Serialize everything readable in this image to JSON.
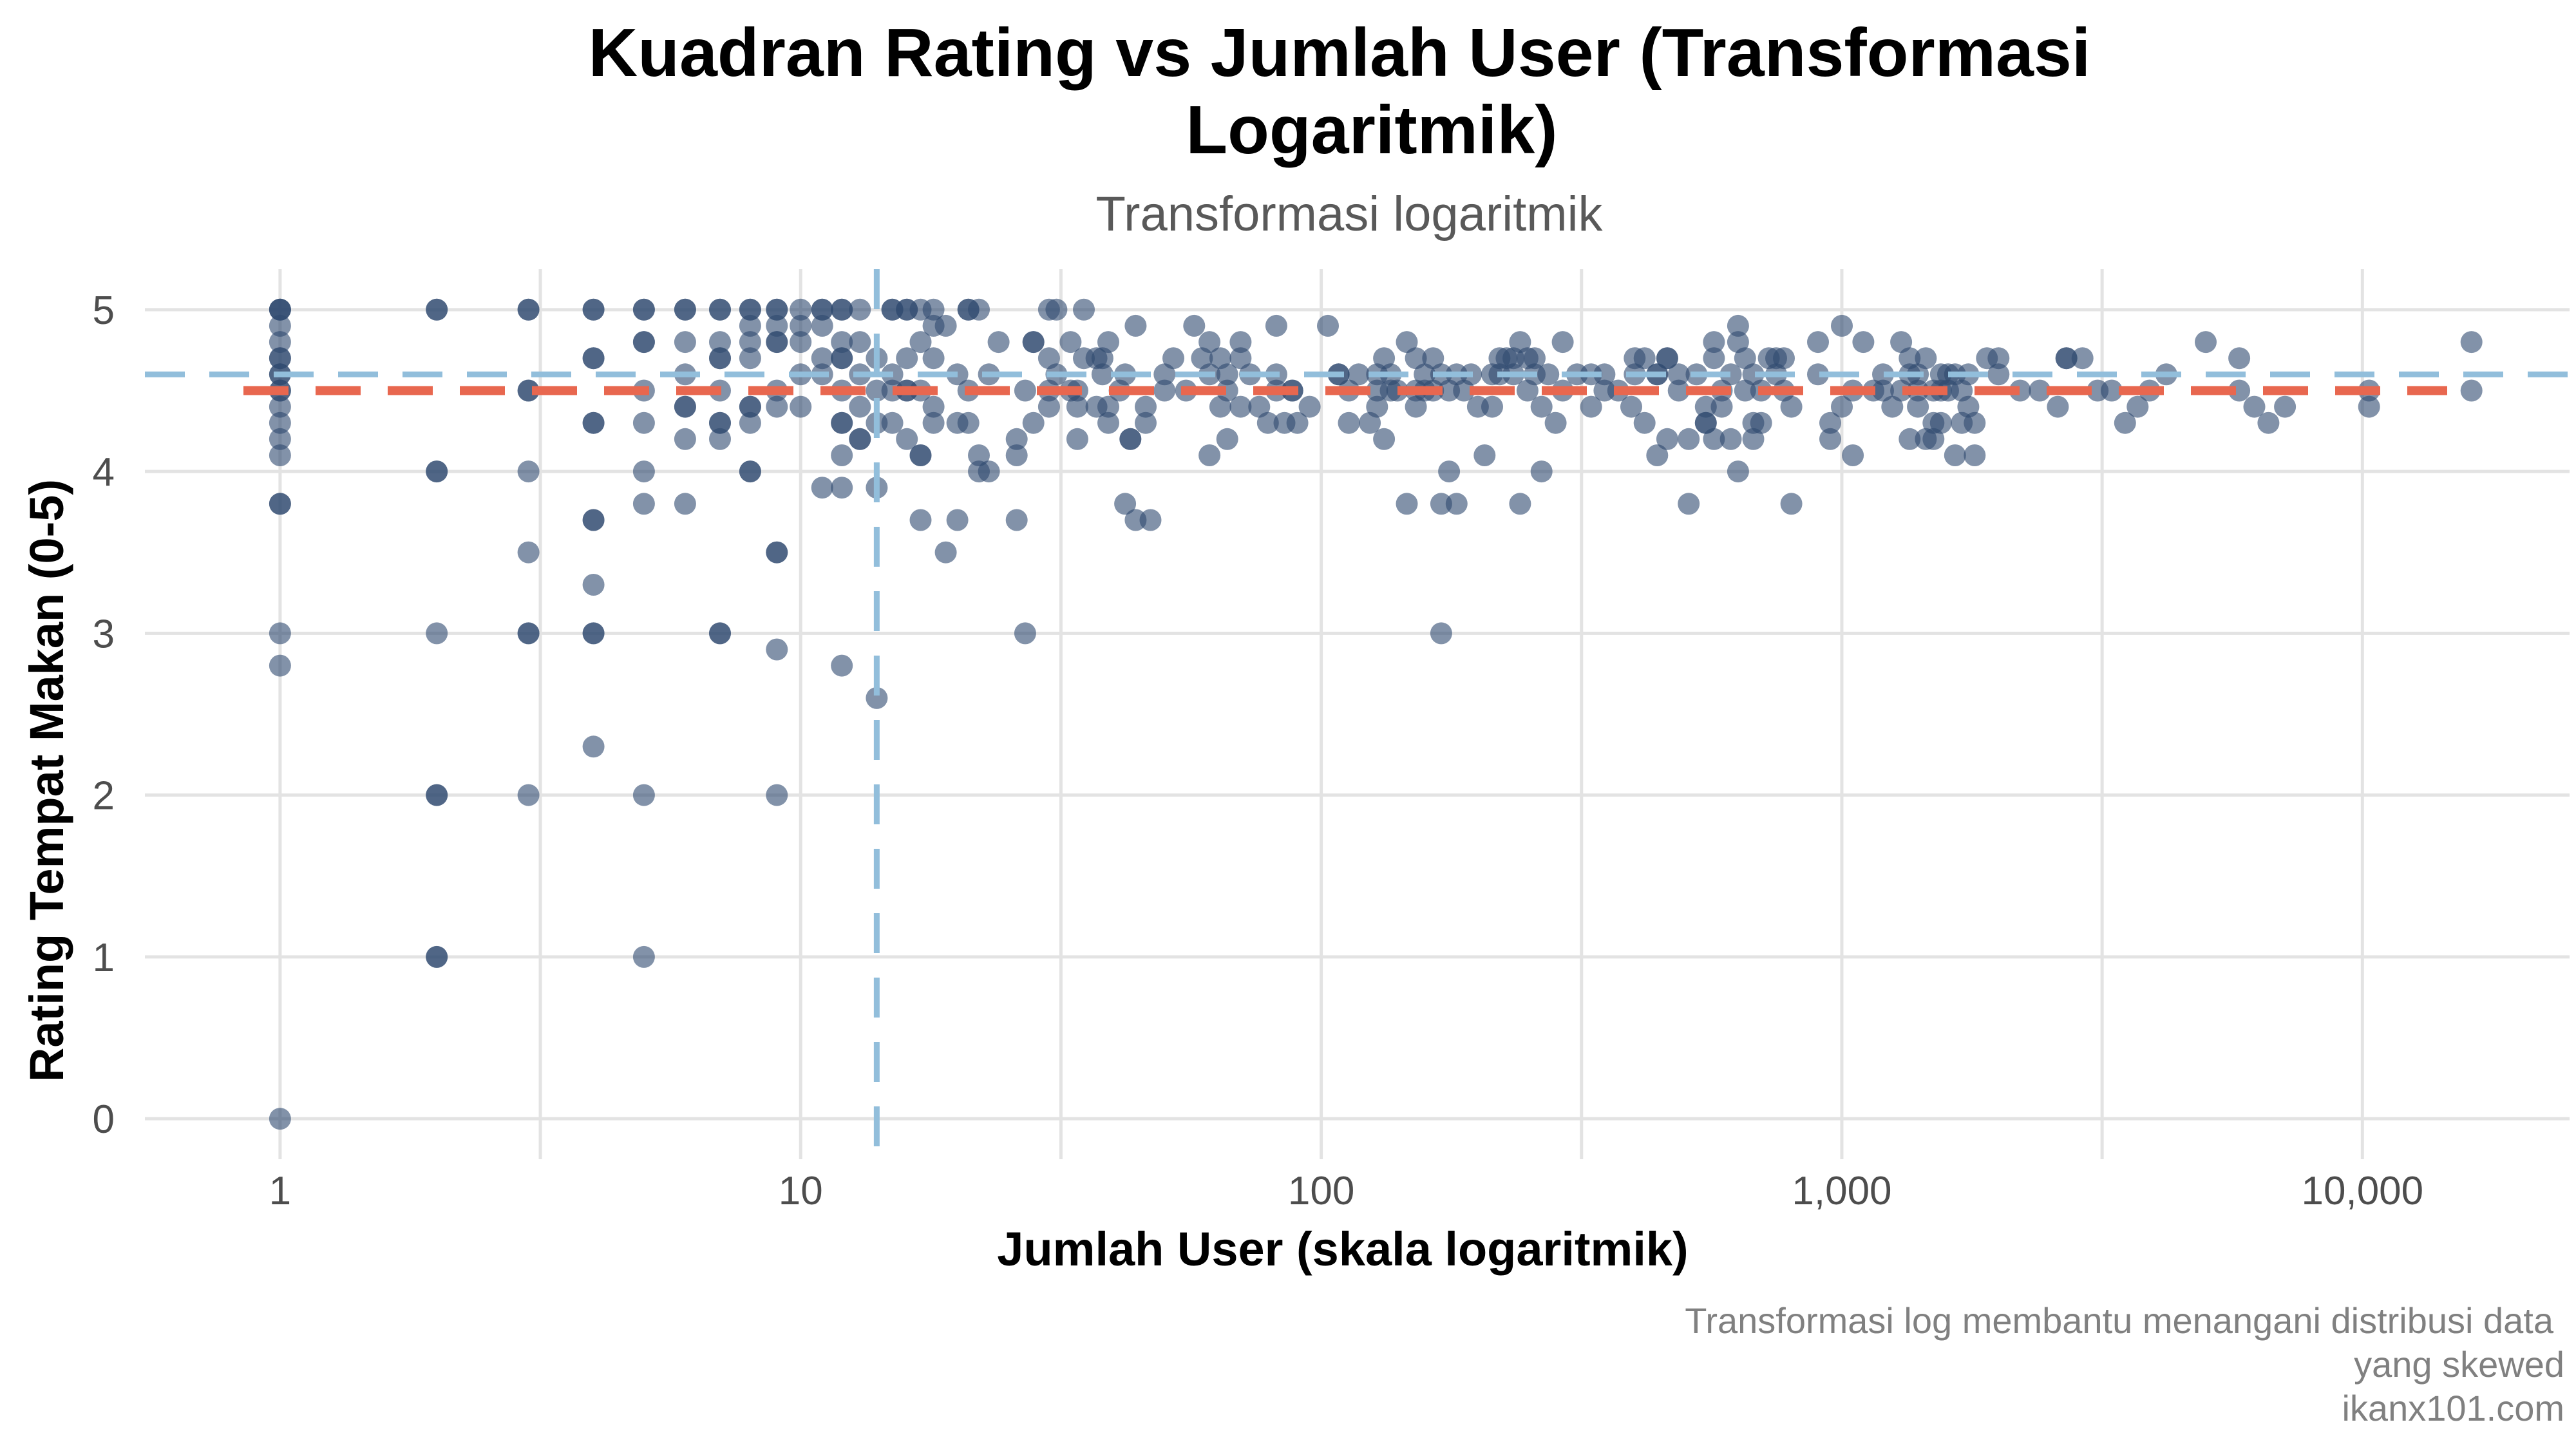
{
  "chart_data": {
    "type": "scatter",
    "title_line1": "Kuadran Rating vs Jumlah User (Transformasi",
    "title_line2": "Logaritmik)",
    "subtitle": "Transformasi logaritmik",
    "xlabel": "Jumlah User (skala logaritmik)",
    "ylabel": "Rating Tempat Makan (0-5)",
    "caption_line1": "Transformasi log membantu menangani distribusi data",
    "caption_line2": "yang skewed",
    "caption_line3": "ikanx101.com",
    "x_scale": "log10",
    "xlim": [
      0.55,
      25000
    ],
    "ylim": [
      -0.25,
      5.25
    ],
    "x_ticks": [
      {
        "value": 1,
        "label": "1"
      },
      {
        "value": 10,
        "label": "10"
      },
      {
        "value": 100,
        "label": "100"
      },
      {
        "value": 1000,
        "label": "1,000"
      },
      {
        "value": 10000,
        "label": "10,000"
      }
    ],
    "y_ticks": [
      {
        "value": 0,
        "label": "0"
      },
      {
        "value": 1,
        "label": "1"
      },
      {
        "value": 2,
        "label": "2"
      },
      {
        "value": 3,
        "label": "3"
      },
      {
        "value": 4,
        "label": "4"
      },
      {
        "value": 5,
        "label": "5"
      }
    ],
    "grid": true,
    "legend": "none",
    "point_color": "#2e4a70",
    "reference_lines": [
      {
        "orientation": "horizontal",
        "value": 4.5,
        "color": "#e8674f",
        "style": "dashed"
      },
      {
        "orientation": "horizontal",
        "value": 4.6,
        "color": "#92bedb",
        "style": "dashed"
      },
      {
        "orientation": "vertical",
        "value": 14,
        "color": "#92bedb",
        "style": "dashed"
      }
    ],
    "points": [
      [
        1,
        5
      ],
      [
        1,
        5
      ],
      [
        1,
        5
      ],
      [
        1,
        4.9
      ],
      [
        1,
        4.8
      ],
      [
        1,
        4.7
      ],
      [
        1,
        4.7
      ],
      [
        1,
        4.6
      ],
      [
        1,
        4.6
      ],
      [
        1,
        4.5
      ],
      [
        1,
        4.5
      ],
      [
        1,
        4.4
      ],
      [
        1,
        4.3
      ],
      [
        1,
        4.2
      ],
      [
        1,
        4.1
      ],
      [
        1,
        3.8
      ],
      [
        1,
        3.8
      ],
      [
        1,
        3
      ],
      [
        1,
        2.8
      ],
      [
        1,
        0
      ],
      [
        2,
        5
      ],
      [
        2,
        5
      ],
      [
        2,
        4
      ],
      [
        2,
        4
      ],
      [
        2,
        3
      ],
      [
        2,
        2
      ],
      [
        2,
        2
      ],
      [
        2,
        1
      ],
      [
        2,
        1
      ],
      [
        3,
        5
      ],
      [
        3,
        5
      ],
      [
        3,
        4.5
      ],
      [
        3,
        4.5
      ],
      [
        3,
        4
      ],
      [
        3,
        3.5
      ],
      [
        3,
        3
      ],
      [
        3,
        3
      ],
      [
        3,
        2
      ],
      [
        4,
        5
      ],
      [
        4,
        5
      ],
      [
        4,
        4.7
      ],
      [
        4,
        4.7
      ],
      [
        4,
        4.3
      ],
      [
        4,
        4.3
      ],
      [
        4,
        3.7
      ],
      [
        4,
        3.7
      ],
      [
        4,
        3.3
      ],
      [
        4,
        3
      ],
      [
        4,
        3
      ],
      [
        4,
        2.3
      ],
      [
        5,
        5
      ],
      [
        5,
        5
      ],
      [
        5,
        4.8
      ],
      [
        5,
        4.8
      ],
      [
        5,
        4.5
      ],
      [
        5,
        4.3
      ],
      [
        5,
        4
      ],
      [
        5,
        3.8
      ],
      [
        5,
        2
      ],
      [
        5,
        1
      ],
      [
        6,
        5
      ],
      [
        6,
        5
      ],
      [
        6,
        4.8
      ],
      [
        6,
        4.6
      ],
      [
        6,
        4.4
      ],
      [
        6,
        4.4
      ],
      [
        6,
        4.2
      ],
      [
        6,
        3.8
      ],
      [
        7,
        5
      ],
      [
        7,
        5
      ],
      [
        7,
        4.8
      ],
      [
        7,
        4.7
      ],
      [
        7,
        4.7
      ],
      [
        7,
        4.5
      ],
      [
        7,
        4.3
      ],
      [
        7,
        4.3
      ],
      [
        7,
        4.2
      ],
      [
        7,
        3
      ],
      [
        7,
        3
      ],
      [
        8,
        5
      ],
      [
        8,
        5
      ],
      [
        8,
        4.9
      ],
      [
        8,
        4.8
      ],
      [
        8,
        4.7
      ],
      [
        8,
        4.4
      ],
      [
        8,
        4.4
      ],
      [
        8,
        4.3
      ],
      [
        8,
        4
      ],
      [
        8,
        4
      ],
      [
        9,
        5
      ],
      [
        9,
        5
      ],
      [
        9,
        4.9
      ],
      [
        9,
        4.8
      ],
      [
        9,
        4.8
      ],
      [
        9,
        4.5
      ],
      [
        9,
        4.4
      ],
      [
        9,
        3.5
      ],
      [
        9,
        3.5
      ],
      [
        9,
        2.9
      ],
      [
        9,
        2
      ],
      [
        10,
        5
      ],
      [
        10,
        4.9
      ],
      [
        10,
        4.8
      ],
      [
        10,
        4.6
      ],
      [
        10,
        4.4
      ],
      [
        11,
        5
      ],
      [
        11,
        5
      ],
      [
        11,
        4.9
      ],
      [
        11,
        4.7
      ],
      [
        11,
        4.6
      ],
      [
        11,
        3.9
      ],
      [
        12,
        5
      ],
      [
        12,
        5
      ],
      [
        12,
        4.8
      ],
      [
        12,
        4.7
      ],
      [
        12,
        4.7
      ],
      [
        12,
        4.5
      ],
      [
        12,
        4.3
      ],
      [
        12,
        4.3
      ],
      [
        12,
        4.1
      ],
      [
        12,
        3.9
      ],
      [
        12,
        2.8
      ],
      [
        13,
        5
      ],
      [
        13,
        4.8
      ],
      [
        13,
        4.6
      ],
      [
        13,
        4.4
      ],
      [
        13,
        4.2
      ],
      [
        13,
        4.2
      ],
      [
        14,
        4.7
      ],
      [
        14,
        4.5
      ],
      [
        14,
        4.3
      ],
      [
        14,
        3.9
      ],
      [
        14,
        2.6
      ],
      [
        15,
        5
      ],
      [
        15,
        5
      ],
      [
        15,
        4.6
      ],
      [
        15,
        4.5
      ],
      [
        15,
        4.3
      ],
      [
        16,
        5
      ],
      [
        16,
        5
      ],
      [
        16,
        4.7
      ],
      [
        16,
        4.5
      ],
      [
        16,
        4.5
      ],
      [
        16,
        4.2
      ],
      [
        17,
        5
      ],
      [
        17,
        4.8
      ],
      [
        17,
        4.5
      ],
      [
        17,
        4.1
      ],
      [
        17,
        4.1
      ],
      [
        17,
        3.7
      ],
      [
        18,
        5
      ],
      [
        18,
        4.9
      ],
      [
        18,
        4.7
      ],
      [
        18,
        4.4
      ],
      [
        18,
        4.3
      ],
      [
        19,
        4.9
      ],
      [
        19,
        3.5
      ],
      [
        20,
        4.6
      ],
      [
        20,
        4.3
      ],
      [
        20,
        3.7
      ],
      [
        21,
        5
      ],
      [
        21,
        5
      ],
      [
        21,
        4.5
      ],
      [
        21,
        4.3
      ],
      [
        22,
        5
      ],
      [
        22,
        4.1
      ],
      [
        22,
        4.0
      ],
      [
        23,
        4.6
      ],
      [
        23,
        4.0
      ],
      [
        24,
        4.8
      ],
      [
        26,
        4.2
      ],
      [
        26,
        4.1
      ],
      [
        26,
        3.7
      ],
      [
        27,
        4.5
      ],
      [
        27,
        3.0
      ],
      [
        28,
        4.8
      ],
      [
        28,
        4.8
      ],
      [
        28,
        4.3
      ],
      [
        30,
        5
      ],
      [
        30,
        4.7
      ],
      [
        30,
        4.5
      ],
      [
        30,
        4.4
      ],
      [
        31,
        5
      ],
      [
        31,
        4.6
      ],
      [
        33,
        4.8
      ],
      [
        33,
        4.5
      ],
      [
        34,
        4.5
      ],
      [
        34,
        4.4
      ],
      [
        34,
        4.2
      ],
      [
        35,
        5
      ],
      [
        35,
        4.7
      ],
      [
        37,
        4.7
      ],
      [
        37,
        4.4
      ],
      [
        38,
        4.7
      ],
      [
        38,
        4.6
      ],
      [
        39,
        4.8
      ],
      [
        39,
        4.4
      ],
      [
        39,
        4.3
      ],
      [
        41,
        4.5
      ],
      [
        42,
        4.6
      ],
      [
        42,
        3.8
      ],
      [
        43,
        4.2
      ],
      [
        43,
        4.2
      ],
      [
        44,
        4.9
      ],
      [
        44,
        3.7
      ],
      [
        46,
        4.4
      ],
      [
        46,
        4.3
      ],
      [
        47,
        3.7
      ],
      [
        50,
        4.6
      ],
      [
        50,
        4.5
      ],
      [
        52,
        4.7
      ],
      [
        55,
        4.5
      ],
      [
        57,
        4.9
      ],
      [
        59,
        4.7
      ],
      [
        61,
        4.8
      ],
      [
        61,
        4.6
      ],
      [
        61,
        4.1
      ],
      [
        64,
        4.7
      ],
      [
        64,
        4.4
      ],
      [
        66,
        4.6
      ],
      [
        66,
        4.5
      ],
      [
        66,
        4.2
      ],
      [
        70,
        4.8
      ],
      [
        70,
        4.7
      ],
      [
        70,
        4.4
      ],
      [
        73,
        4.6
      ],
      [
        76,
        4.4
      ],
      [
        79,
        4.3
      ],
      [
        82,
        4.9
      ],
      [
        82,
        4.6
      ],
      [
        82,
        4.5
      ],
      [
        85,
        4.3
      ],
      [
        88,
        4.5
      ],
      [
        88,
        4.5
      ],
      [
        90,
        4.3
      ],
      [
        95,
        4.4
      ],
      [
        103,
        4.9
      ],
      [
        108,
        4.6
      ],
      [
        108,
        4.6
      ],
      [
        113,
        4.5
      ],
      [
        113,
        4.3
      ],
      [
        118,
        4.6
      ],
      [
        124,
        4.3
      ],
      [
        128,
        4.6
      ],
      [
        128,
        4.5
      ],
      [
        128,
        4.4
      ],
      [
        132,
        4.7
      ],
      [
        132,
        4.2
      ],
      [
        136,
        4.6
      ],
      [
        136,
        4.5
      ],
      [
        140,
        4.5
      ],
      [
        146,
        4.8
      ],
      [
        146,
        3.8
      ],
      [
        152,
        4.7
      ],
      [
        152,
        4.5
      ],
      [
        152,
        4.4
      ],
      [
        158,
        4.6
      ],
      [
        158,
        4.5
      ],
      [
        164,
        4.7
      ],
      [
        164,
        4.5
      ],
      [
        170,
        4.6
      ],
      [
        170,
        3.8
      ],
      [
        170,
        3.0
      ],
      [
        176,
        4.5
      ],
      [
        176,
        4.0
      ],
      [
        182,
        4.6
      ],
      [
        182,
        3.8
      ],
      [
        188,
        4.5
      ],
      [
        194,
        4.6
      ],
      [
        200,
        4.4
      ],
      [
        206,
        4.1
      ],
      [
        213,
        4.6
      ],
      [
        213,
        4.4
      ],
      [
        220,
        4.7
      ],
      [
        220,
        4.6
      ],
      [
        227,
        4.7
      ],
      [
        234,
        4.7
      ],
      [
        234,
        4.6
      ],
      [
        241,
        4.8
      ],
      [
        241,
        3.8
      ],
      [
        249,
        4.7
      ],
      [
        249,
        4.5
      ],
      [
        257,
        4.7
      ],
      [
        257,
        4.6
      ],
      [
        265,
        4.0
      ],
      [
        265,
        4.4
      ],
      [
        273,
        4.6
      ],
      [
        282,
        4.3
      ],
      [
        291,
        4.8
      ],
      [
        291,
        4.5
      ],
      [
        310,
        4.6
      ],
      [
        330,
        4.6
      ],
      [
        330,
        4.4
      ],
      [
        350,
        4.6
      ],
      [
        350,
        4.5
      ],
      [
        372,
        4.5
      ],
      [
        394,
        4.4
      ],
      [
        400,
        4.6
      ],
      [
        400,
        4.7
      ],
      [
        418,
        4.7
      ],
      [
        418,
        4.3
      ],
      [
        442,
        4.1
      ],
      [
        442,
        4.6
      ],
      [
        442,
        4.6
      ],
      [
        462,
        4.7
      ],
      [
        462,
        4.7
      ],
      [
        462,
        4.2
      ],
      [
        486,
        4.6
      ],
      [
        486,
        4.5
      ],
      [
        508,
        4.2
      ],
      [
        508,
        3.8
      ],
      [
        526,
        4.6
      ],
      [
        548,
        4.3
      ],
      [
        548,
        4.3
      ],
      [
        548,
        4.4
      ],
      [
        568,
        4.7
      ],
      [
        568,
        4.8
      ],
      [
        568,
        4.2
      ],
      [
        588,
        4.4
      ],
      [
        588,
        4.5
      ],
      [
        612,
        4.2
      ],
      [
        612,
        4.6
      ],
      [
        632,
        4.8
      ],
      [
        632,
        4.0
      ],
      [
        632,
        4.9
      ],
      [
        652,
        4.5
      ],
      [
        652,
        4.7
      ],
      [
        676,
        4.3
      ],
      [
        676,
        4.2
      ],
      [
        676,
        4.6
      ],
      [
        700,
        4.5
      ],
      [
        700,
        4.3
      ],
      [
        724,
        4.7
      ],
      [
        748,
        4.7
      ],
      [
        748,
        4.6
      ],
      [
        774,
        4.5
      ],
      [
        774,
        4.7
      ],
      [
        800,
        4.4
      ],
      [
        800,
        3.8
      ],
      [
        900,
        4.6
      ],
      [
        900,
        4.8
      ],
      [
        950,
        4.3
      ],
      [
        950,
        4.2
      ],
      [
        1000,
        4.4
      ],
      [
        1000,
        4.9
      ],
      [
        1050,
        4.1
      ],
      [
        1050,
        4.5
      ],
      [
        1100,
        4.8
      ],
      [
        1150,
        4.5
      ],
      [
        1200,
        4.5
      ],
      [
        1200,
        4.6
      ],
      [
        1250,
        4.4
      ],
      [
        1300,
        4.5
      ],
      [
        1300,
        4.8
      ],
      [
        1350,
        4.2
      ],
      [
        1350,
        4.7
      ],
      [
        1350,
        4.6
      ],
      [
        1400,
        4.5
      ],
      [
        1400,
        4.6
      ],
      [
        1400,
        4.4
      ],
      [
        1450,
        4.2
      ],
      [
        1450,
        4.7
      ],
      [
        1500,
        4.3
      ],
      [
        1500,
        4.2
      ],
      [
        1500,
        4.5
      ],
      [
        1550,
        4.5
      ],
      [
        1550,
        4.6
      ],
      [
        1550,
        4.3
      ],
      [
        1600,
        4.6
      ],
      [
        1600,
        4.5
      ],
      [
        1650,
        4.1
      ],
      [
        1650,
        4.6
      ],
      [
        1700,
        4.3
      ],
      [
        1700,
        4.5
      ],
      [
        1750,
        4.6
      ],
      [
        1750,
        4.4
      ],
      [
        1800,
        4.1
      ],
      [
        1800,
        4.3
      ],
      [
        1900,
        4.7
      ],
      [
        2000,
        4.6
      ],
      [
        2000,
        4.7
      ],
      [
        2200,
        4.5
      ],
      [
        2400,
        4.5
      ],
      [
        2600,
        4.4
      ],
      [
        2700,
        4.7
      ],
      [
        2700,
        4.7
      ],
      [
        2900,
        4.7
      ],
      [
        3100,
        4.5
      ],
      [
        3300,
        4.5
      ],
      [
        3500,
        4.3
      ],
      [
        3700,
        4.4
      ],
      [
        3900,
        4.5
      ],
      [
        4200,
        4.6
      ],
      [
        5000,
        4.8
      ],
      [
        5800,
        4.7
      ],
      [
        5800,
        4.5
      ],
      [
        6200,
        4.4
      ],
      [
        6600,
        4.3
      ],
      [
        7100,
        4.4
      ],
      [
        10300,
        4.5
      ],
      [
        10300,
        4.4
      ],
      [
        16200,
        4.8
      ],
      [
        16200,
        4.5
      ]
    ]
  }
}
